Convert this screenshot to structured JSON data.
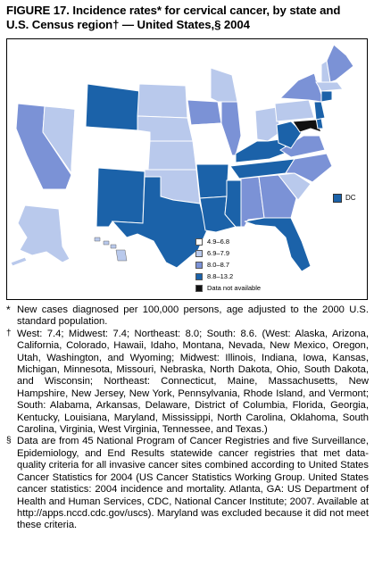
{
  "title": {
    "line1": "FIGURE 17. Incidence rates* for cervical cancer, by state and",
    "line2": "U.S. Census region† — United States,§ 2004"
  },
  "legend": [
    {
      "label": "4.9–6.8",
      "color": "#ffffff"
    },
    {
      "label": "6.9–7.9",
      "color": "#b9c9ec"
    },
    {
      "label": "8.0–8.7",
      "color": "#7b92d6"
    },
    {
      "label": "8.8–13.2",
      "color": "#1b62a9"
    },
    {
      "label": "Data not available",
      "color": "#111111"
    }
  ],
  "dc_label": "DC",
  "notes": {
    "star_mark": "*",
    "star_text": "New cases diagnosed per 100,000 persons, age adjusted to the 2000 U.S. standard population.",
    "dagger_mark": "†",
    "dagger_text": "West: 7.4; Midwest: 7.4; Northeast: 8.0; South: 8.6. (West: Alaska, Arizona, California, Colorado, Hawaii, Idaho, Montana, Nevada, New Mexico, Oregon, Utah, Washington, and Wyoming; Midwest: Illinois, Indiana, Iowa, Kansas, Michigan, Minnesota, Missouri, Nebraska, North Dakota, Ohio, South Dakota, and Wisconsin; Northeast: Connecticut, Maine, Massachusetts, New Hampshire, New Jersey, New York, Pennsylvania, Rhode Island, and Vermont; South: Alabama, Arkansas, Delaware, District of Columbia, Florida, Georgia, Kentucky, Louisiana, Maryland, Mississippi, North Carolina, Oklahoma, South Carolina, Virginia, West Virginia, Tennessee, and Texas.)",
    "section_mark": "§",
    "section_text": "Data are from 45 National Program of Cancer Registries and five Surveillance, Epidemiology, and End Results statewide cancer registries that met data-quality criteria for all invasive cancer sites combined according to United States Cancer Statistics for 2004 (US Cancer Statistics Working Group. United States cancer statistics: 2004 incidence and mortality. Atlanta, GA: US Department of Health and Human Services, CDC, National Cancer Institute; 2007. Available at http://apps.nccd.cdc.gov/uscs). Maryland was excluded because it did not meet these criteria."
  }
}
